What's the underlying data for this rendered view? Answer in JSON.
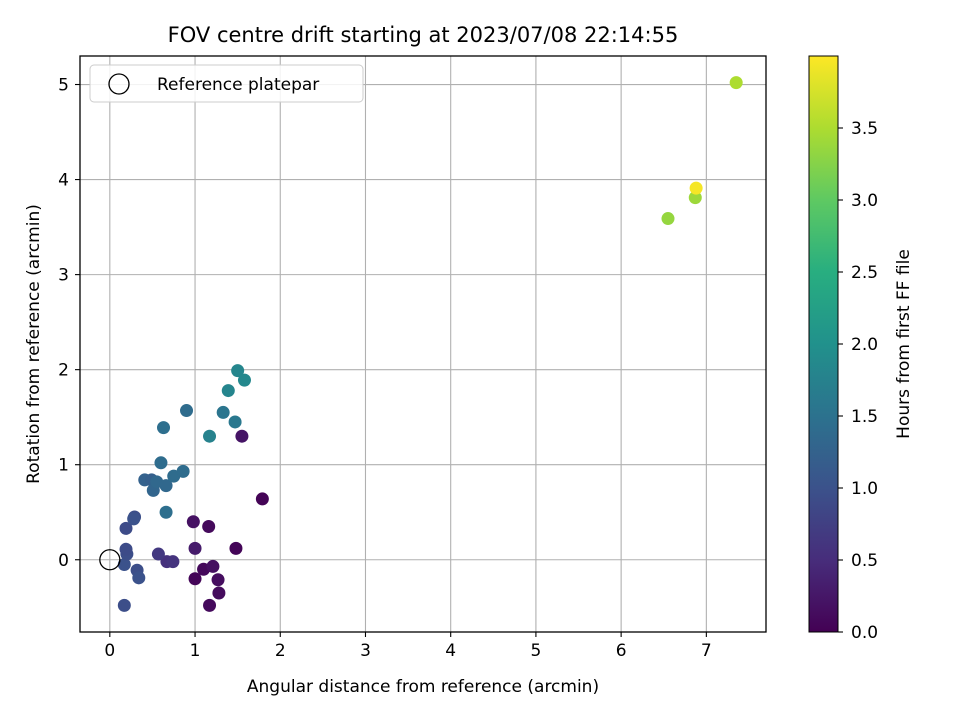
{
  "chart_data": {
    "type": "scatter",
    "title": "FOV centre drift starting at 2023/07/08 22:14:55",
    "xlabel": "Angular distance from reference (arcmin)",
    "ylabel": "Rotation from reference (arcmin)",
    "xlim": [
      -0.35,
      7.7
    ],
    "ylim": [
      -0.76,
      5.3
    ],
    "xticks": [
      0,
      1,
      2,
      3,
      4,
      5,
      6,
      7
    ],
    "yticks": [
      0,
      1,
      2,
      3,
      4,
      5
    ],
    "grid": true,
    "legend": {
      "position": "top-left",
      "entries": [
        "Reference platepar"
      ]
    },
    "reference_point": {
      "x": 0,
      "y": 0
    },
    "colorbar": {
      "label": "Hours from first FF file",
      "range": [
        0,
        4.0
      ],
      "ticks": [
        "0.0",
        "0.5",
        "1.0",
        "1.5",
        "2.0",
        "2.5",
        "3.0",
        "3.5"
      ],
      "colormap": "viridis"
    },
    "points": [
      {
        "x": 1.0,
        "y": -0.2,
        "c": 0.05
      },
      {
        "x": 1.1,
        "y": -0.1,
        "c": 0.08
      },
      {
        "x": 1.17,
        "y": -0.48,
        "c": 0.1
      },
      {
        "x": 1.28,
        "y": -0.35,
        "c": 0.12
      },
      {
        "x": 1.27,
        "y": -0.21,
        "c": 0.14
      },
      {
        "x": 1.21,
        "y": -0.07,
        "c": 0.16
      },
      {
        "x": 1.48,
        "y": 0.12,
        "c": 0.05
      },
      {
        "x": 1.79,
        "y": 0.64,
        "c": 0.03
      },
      {
        "x": 0.98,
        "y": 0.4,
        "c": 0.18
      },
      {
        "x": 1.16,
        "y": 0.35,
        "c": 0.1
      },
      {
        "x": 1.0,
        "y": 0.12,
        "c": 0.3
      },
      {
        "x": 1.55,
        "y": 1.3,
        "c": 0.22
      },
      {
        "x": 0.67,
        "y": -0.02,
        "c": 0.55
      },
      {
        "x": 0.74,
        "y": -0.02,
        "c": 0.6
      },
      {
        "x": 0.57,
        "y": 0.06,
        "c": 0.65
      },
      {
        "x": 0.17,
        "y": -0.48,
        "c": 0.95
      },
      {
        "x": 0.32,
        "y": -0.11,
        "c": 0.95
      },
      {
        "x": 0.34,
        "y": -0.19,
        "c": 1.0
      },
      {
        "x": 0.17,
        "y": -0.05,
        "c": 1.0
      },
      {
        "x": 0.2,
        "y": 0.06,
        "c": 0.95
      },
      {
        "x": 0.19,
        "y": 0.11,
        "c": 0.9
      },
      {
        "x": 0.19,
        "y": 0.33,
        "c": 0.9
      },
      {
        "x": 0.29,
        "y": 0.45,
        "c": 0.95
      },
      {
        "x": 0.28,
        "y": 0.43,
        "c": 1.0
      },
      {
        "x": 0.41,
        "y": 0.84,
        "c": 1.25
      },
      {
        "x": 0.49,
        "y": 0.84,
        "c": 1.2
      },
      {
        "x": 0.51,
        "y": 0.73,
        "c": 1.3
      },
      {
        "x": 0.55,
        "y": 0.82,
        "c": 1.35
      },
      {
        "x": 0.6,
        "y": 1.02,
        "c": 1.4
      },
      {
        "x": 0.66,
        "y": 0.78,
        "c": 1.35
      },
      {
        "x": 0.66,
        "y": 0.5,
        "c": 1.45
      },
      {
        "x": 0.75,
        "y": 0.88,
        "c": 1.4
      },
      {
        "x": 0.86,
        "y": 0.93,
        "c": 1.4
      },
      {
        "x": 0.63,
        "y": 1.39,
        "c": 1.45
      },
      {
        "x": 0.9,
        "y": 1.57,
        "c": 1.4
      },
      {
        "x": 1.33,
        "y": 1.55,
        "c": 1.55
      },
      {
        "x": 1.47,
        "y": 1.45,
        "c": 1.6
      },
      {
        "x": 1.17,
        "y": 1.3,
        "c": 1.75
      },
      {
        "x": 1.39,
        "y": 1.78,
        "c": 1.8
      },
      {
        "x": 1.5,
        "y": 1.99,
        "c": 1.82
      },
      {
        "x": 1.58,
        "y": 1.89,
        "c": 1.85
      },
      {
        "x": 6.55,
        "y": 3.59,
        "c": 3.35
      },
      {
        "x": 6.87,
        "y": 3.81,
        "c": 3.4
      },
      {
        "x": 6.88,
        "y": 3.91,
        "c": 3.95
      },
      {
        "x": 7.35,
        "y": 5.02,
        "c": 3.5
      }
    ]
  }
}
